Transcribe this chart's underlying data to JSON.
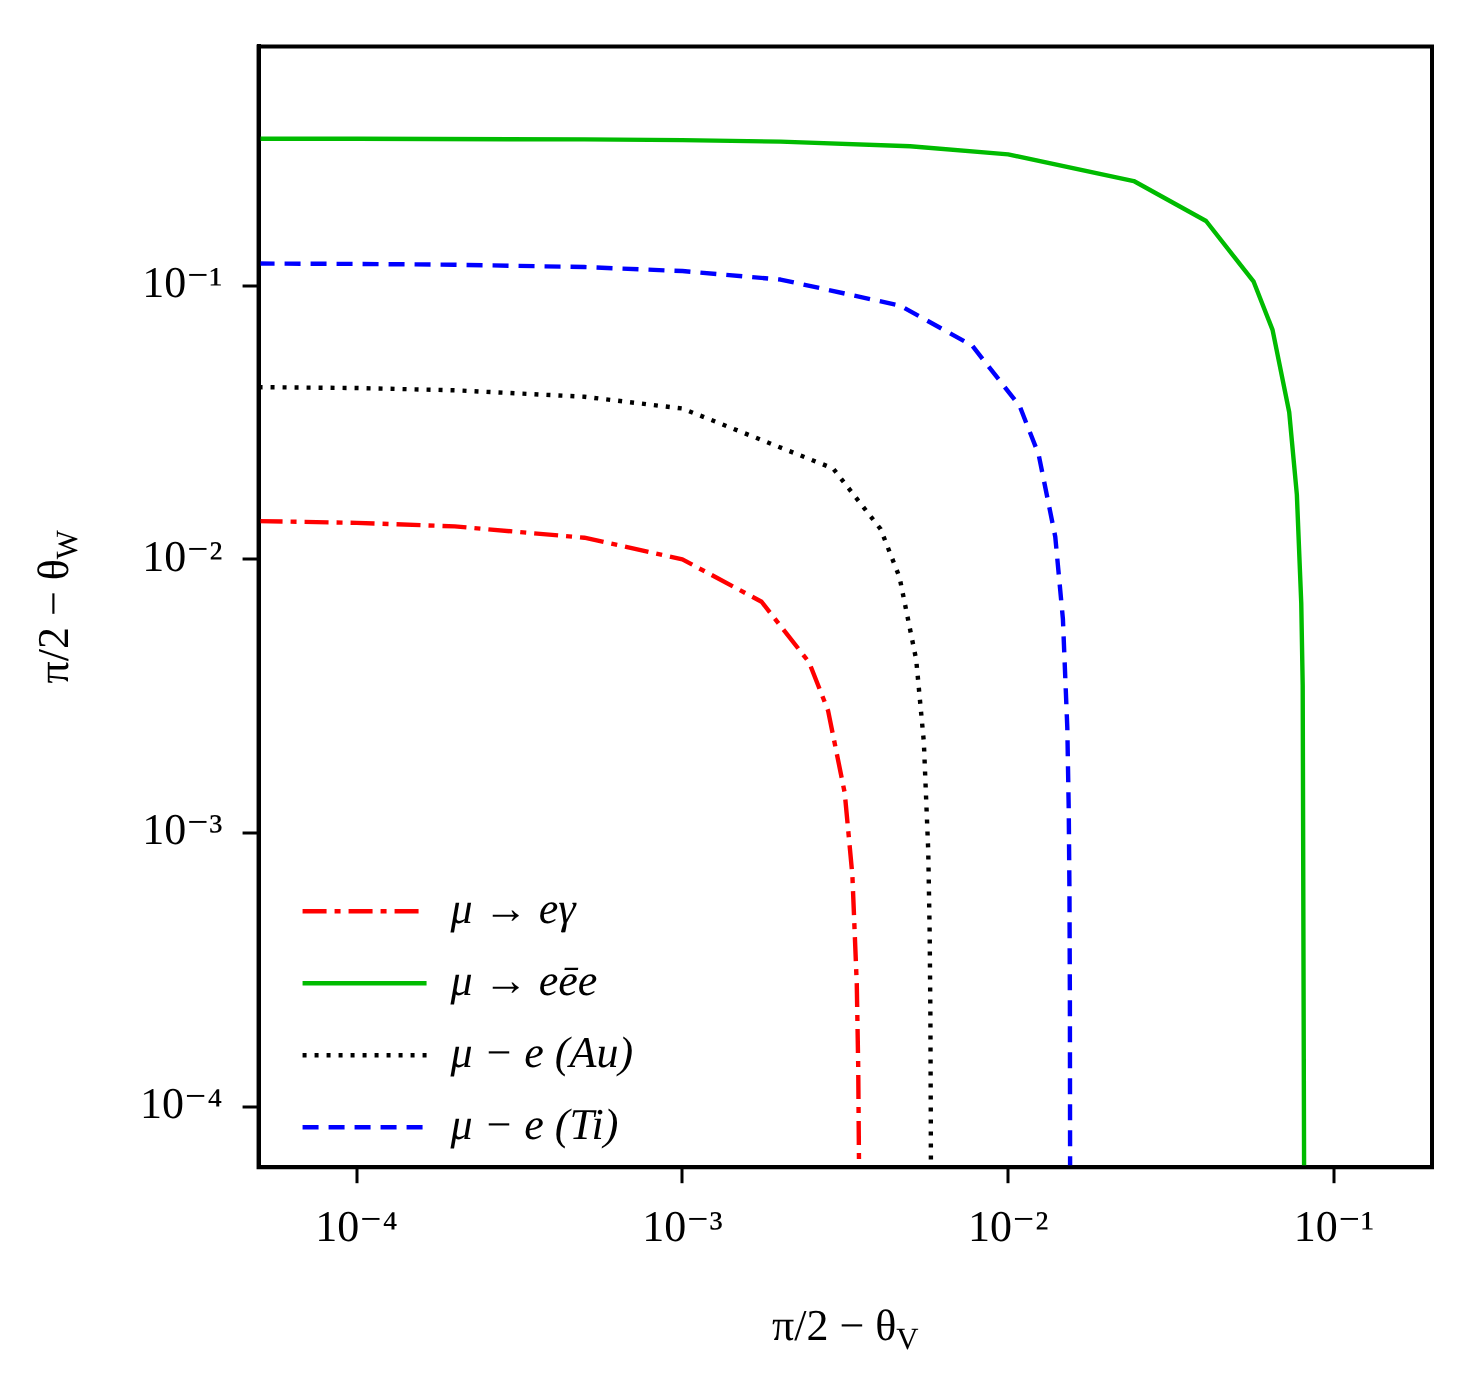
{
  "chart_data": {
    "type": "line",
    "xlabel": "π/2 − θ$_{V}$",
    "ylabel": "π/2 − θ$_{W}$",
    "log": "xy",
    "grid": false,
    "legend": "bottom left",
    "marker": "none",
    "xlim": [
      5e-05,
      0.2
    ],
    "ylim": [
      6e-05,
      0.75
    ],
    "xticks": [
      {
        "value": 0.0001,
        "label": "10⁻⁴"
      },
      {
        "value": 0.001,
        "label": "10⁻³"
      },
      {
        "value": 0.01,
        "label": "10⁻²"
      },
      {
        "value": 0.1,
        "label": "10⁻¹"
      }
    ],
    "yticks": [
      {
        "value": 0.0001,
        "label": "10⁻⁴"
      },
      {
        "value": 0.001,
        "label": "10⁻³"
      },
      {
        "value": 0.01,
        "label": "10⁻²"
      },
      {
        "value": 0.1,
        "label": "10⁻¹"
      }
    ],
    "series": [
      {
        "name": "μ → eγ",
        "color": "#ff0000",
        "line_style": "dashdot",
        "x": [
          5e-05,
          0.0001,
          0.0002,
          0.0005,
          0.001,
          0.00175,
          0.00245,
          0.0028,
          0.00315,
          0.003325,
          0.00343,
          0.003465,
          0.003485
        ],
        "values": [
          0.0138,
          0.0136,
          0.0132,
          0.012,
          0.01,
          0.007,
          0.0042,
          0.0028,
          0.0014,
          0.0007,
          0.00028,
          0.00014,
          6e-05
        ]
      },
      {
        "name": "μ → eēe",
        "color": "#00bb00",
        "line_style": "solid",
        "x": [
          5e-05,
          0.0001,
          0.0005,
          0.001,
          0.002,
          0.005,
          0.01,
          0.0243,
          0.0405,
          0.0567,
          0.0648,
          0.0729,
          0.07695,
          0.07938,
          0.08019,
          0.08098
        ],
        "values": [
          0.3448,
          0.3446,
          0.3429,
          0.3407,
          0.3365,
          0.3237,
          0.3024,
          0.2415,
          0.1725,
          0.1035,
          0.069,
          0.0345,
          0.01725,
          0.0069,
          0.00345,
          6e-05
        ]
      },
      {
        "name": "μ − e (Au)",
        "color": "#000000",
        "line_style": "dotted",
        "x": [
          5e-05,
          0.0001,
          0.0002,
          0.0005,
          0.001,
          0.0029,
          0.00406,
          0.00464,
          0.00522,
          0.00551,
          0.005684,
          0.005742,
          0.005771,
          0.005788,
          0.005792
        ],
        "values": [
          0.0426,
          0.0423,
          0.0415,
          0.0393,
          0.0356,
          0.0215,
          0.0129,
          0.0086,
          0.0043,
          0.00215,
          0.00086,
          0.00043,
          0.000215,
          8.6e-05,
          6e-05
        ]
      },
      {
        "name": "μ − e (Ti)",
        "color": "#0000ff",
        "line_style": "dashed",
        "x": [
          5e-05,
          0.0001,
          0.0002,
          0.0005,
          0.001,
          0.002,
          0.00465,
          0.00775,
          0.01085,
          0.0124,
          0.01395,
          0.014725,
          0.01519,
          0.015345,
          0.015423,
          0.015469,
          0.015492
        ],
        "values": [
          0.1206,
          0.1202,
          0.1194,
          0.1171,
          0.1132,
          0.1054,
          0.0847,
          0.0605,
          0.0363,
          0.0242,
          0.0121,
          0.00605,
          0.00242,
          0.00121,
          0.000605,
          0.000242,
          6e-05
        ]
      }
    ]
  }
}
